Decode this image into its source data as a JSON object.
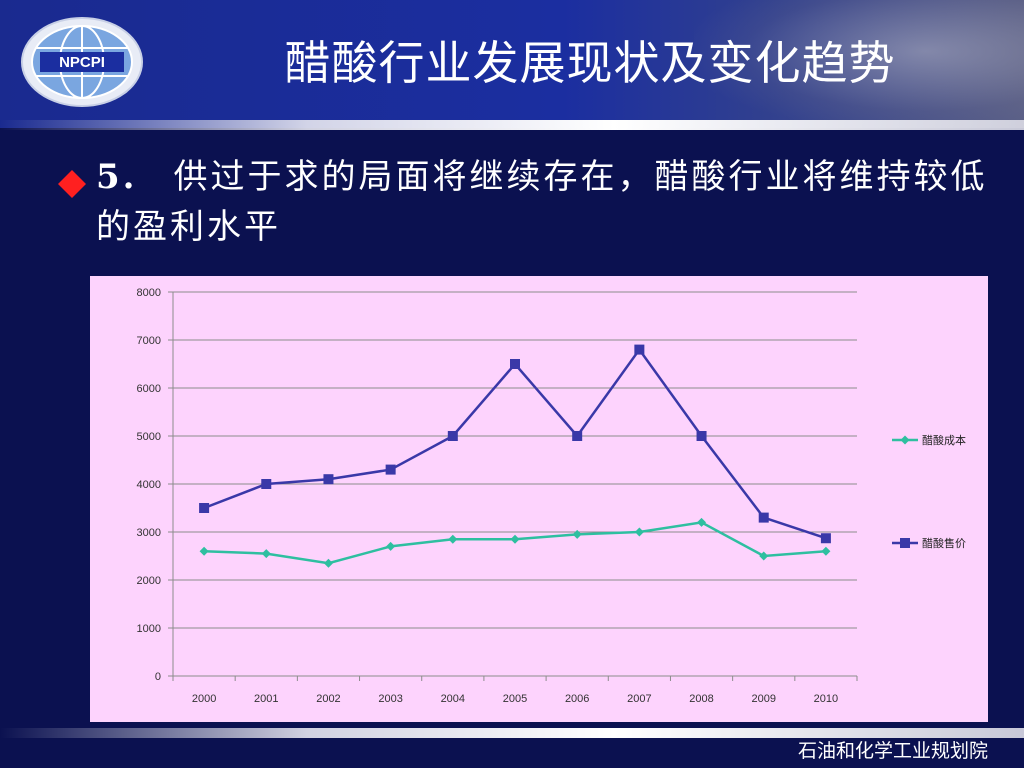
{
  "slide": {
    "title": "醋酸行业发展现状及变化趋势",
    "logo_text": "NPCPI",
    "bullet_number": "5.",
    "bullet_text": "供过于求的局面将继续存在，醋酸行业将维持较低的盈利水平",
    "footer": "石油和化学工业规划院"
  },
  "colors": {
    "background": "#0b1150",
    "header": "#1b2ea0",
    "chart_bg": "#fdd3fd",
    "bullet": "#ff2020",
    "cost_series": "#2ebfa0",
    "price_series": "#3a38a8"
  },
  "chart_data": {
    "type": "line",
    "categories": [
      "2000",
      "2001",
      "2002",
      "2003",
      "2004",
      "2005",
      "2006",
      "2007",
      "2008",
      "2009",
      "2010"
    ],
    "series": [
      {
        "name": "醋酸成本",
        "marker": "diamond",
        "color": "#2ebfa0",
        "values": [
          2600,
          2550,
          2350,
          2700,
          2850,
          2850,
          2950,
          3000,
          3200,
          2500,
          2600
        ]
      },
      {
        "name": "醋酸售价",
        "marker": "square",
        "color": "#3a38a8",
        "values": [
          3500,
          4000,
          4100,
          4300,
          5000,
          6500,
          5000,
          6800,
          5000,
          3300,
          2870
        ]
      }
    ],
    "ylim": [
      0,
      8000
    ],
    "yticks": [
      0,
      1000,
      2000,
      3000,
      4000,
      5000,
      6000,
      7000,
      8000
    ],
    "grid": true,
    "legend": "right"
  }
}
